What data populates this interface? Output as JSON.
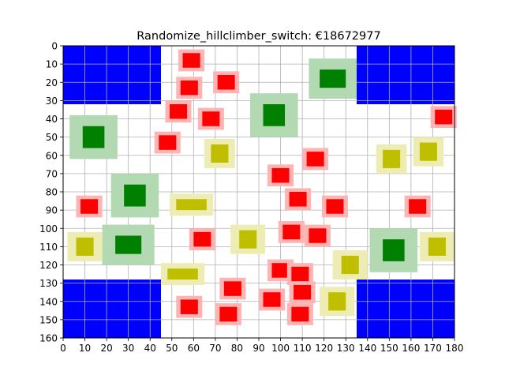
{
  "chart_data": {
    "type": "heatmap",
    "title": "Randomize_hillclimber_switch: €18672977",
    "xlabel": "",
    "ylabel": "",
    "xlim": [
      0,
      180
    ],
    "ylim": [
      160,
      0
    ],
    "y_inverted": true,
    "grid": true,
    "x_ticks": [
      0,
      10,
      20,
      30,
      40,
      50,
      60,
      70,
      80,
      90,
      100,
      110,
      120,
      130,
      140,
      150,
      160,
      170,
      180
    ],
    "y_ticks": [
      0,
      10,
      20,
      30,
      40,
      50,
      60,
      70,
      80,
      90,
      100,
      110,
      120,
      130,
      140,
      150,
      160
    ],
    "x_tick_labels": [
      "0",
      "10",
      "20",
      "30",
      "40",
      "50",
      "60",
      "70",
      "80",
      "90",
      "100",
      "110",
      "120",
      "130",
      "140",
      "150",
      "160",
      "170",
      "180"
    ],
    "y_tick_labels": [
      "0",
      "10",
      "20",
      "30",
      "40",
      "50",
      "60",
      "70",
      "80",
      "90",
      "100",
      "110",
      "120",
      "130",
      "140",
      "150",
      "160"
    ],
    "colors": {
      "zone": "#0000ff",
      "red_core": "#ff0000",
      "red_halo": "#ffb3b3",
      "green_core": "#008000",
      "green_halo": "#b3d9b3",
      "yellow_core": "#bfbf00",
      "yellow_halo": "#ececb3"
    },
    "zones": [
      {
        "x0": 0,
        "x1": 45,
        "y0": 0,
        "y1": 32
      },
      {
        "x0": 135,
        "x1": 180,
        "y0": 0,
        "y1": 32
      },
      {
        "x0": 0,
        "x1": 45,
        "y0": 128,
        "y1": 160
      },
      {
        "x0": 135,
        "x1": 180,
        "y0": 128,
        "y1": 160
      }
    ],
    "items": [
      {
        "kind": "green",
        "cx": 124,
        "cy": 18,
        "hw": 11,
        "hh": 11,
        "cw": 6,
        "ch": 5
      },
      {
        "kind": "green",
        "cx": 97,
        "cy": 38,
        "hw": 11,
        "hh": 12,
        "cw": 5,
        "ch": 6
      },
      {
        "kind": "green",
        "cx": 14,
        "cy": 50,
        "hw": 11,
        "hh": 12,
        "cw": 5,
        "ch": 6
      },
      {
        "kind": "green",
        "cx": 33,
        "cy": 82,
        "hw": 11,
        "hh": 12,
        "cw": 5,
        "ch": 6
      },
      {
        "kind": "green",
        "cx": 30,
        "cy": 109,
        "hw": 12,
        "hh": 11,
        "cw": 6,
        "ch": 5
      },
      {
        "kind": "green",
        "cx": 152,
        "cy": 112,
        "hw": 11,
        "hh": 12,
        "cw": 5,
        "ch": 6
      },
      {
        "kind": "red",
        "cx": 59,
        "cy": 8,
        "hw": 6,
        "hh": 6,
        "cw": 4,
        "ch": 4
      },
      {
        "kind": "red",
        "cx": 75,
        "cy": 20,
        "hw": 6,
        "hh": 6,
        "cw": 4,
        "ch": 4
      },
      {
        "kind": "red",
        "cx": 58,
        "cy": 23,
        "hw": 6,
        "hh": 6,
        "cw": 4,
        "ch": 4
      },
      {
        "kind": "red",
        "cx": 53,
        "cy": 36,
        "hw": 6,
        "hh": 6,
        "cw": 4,
        "ch": 4
      },
      {
        "kind": "red",
        "cx": 68,
        "cy": 40,
        "hw": 6,
        "hh": 6,
        "cw": 4,
        "ch": 4
      },
      {
        "kind": "red",
        "cx": 175,
        "cy": 39,
        "hw": 6,
        "hh": 6,
        "cw": 4,
        "ch": 4
      },
      {
        "kind": "red",
        "cx": 48,
        "cy": 53,
        "hw": 6,
        "hh": 6,
        "cw": 4,
        "ch": 4
      },
      {
        "kind": "red",
        "cx": 116,
        "cy": 62,
        "hw": 6,
        "hh": 6,
        "cw": 4,
        "ch": 4
      },
      {
        "kind": "red",
        "cx": 100,
        "cy": 71,
        "hw": 6,
        "hh": 6,
        "cw": 4,
        "ch": 4
      },
      {
        "kind": "red",
        "cx": 108,
        "cy": 84,
        "hw": 6,
        "hh": 6,
        "cw": 4,
        "ch": 4
      },
      {
        "kind": "red",
        "cx": 12,
        "cy": 88,
        "hw": 6,
        "hh": 6,
        "cw": 4,
        "ch": 4
      },
      {
        "kind": "red",
        "cx": 125,
        "cy": 88,
        "hw": 6,
        "hh": 6,
        "cw": 4,
        "ch": 4
      },
      {
        "kind": "red",
        "cx": 163,
        "cy": 88,
        "hw": 6,
        "hh": 6,
        "cw": 4,
        "ch": 4
      },
      {
        "kind": "red",
        "cx": 105,
        "cy": 102,
        "hw": 6,
        "hh": 6,
        "cw": 4,
        "ch": 4
      },
      {
        "kind": "red",
        "cx": 117,
        "cy": 104,
        "hw": 6,
        "hh": 6,
        "cw": 4,
        "ch": 4
      },
      {
        "kind": "red",
        "cx": 64,
        "cy": 106,
        "hw": 6,
        "hh": 6,
        "cw": 4,
        "ch": 4
      },
      {
        "kind": "red",
        "cx": 100,
        "cy": 123,
        "hw": 6,
        "hh": 6,
        "cw": 4,
        "ch": 4
      },
      {
        "kind": "red",
        "cx": 109,
        "cy": 125,
        "hw": 6,
        "hh": 6,
        "cw": 4,
        "ch": 4
      },
      {
        "kind": "red",
        "cx": 78,
        "cy": 133,
        "hw": 6,
        "hh": 6,
        "cw": 4,
        "ch": 4
      },
      {
        "kind": "red",
        "cx": 110,
        "cy": 135,
        "hw": 6,
        "hh": 6,
        "cw": 4,
        "ch": 4
      },
      {
        "kind": "red",
        "cx": 96,
        "cy": 139,
        "hw": 6,
        "hh": 6,
        "cw": 4,
        "ch": 4
      },
      {
        "kind": "red",
        "cx": 58,
        "cy": 143,
        "hw": 6,
        "hh": 6,
        "cw": 4,
        "ch": 4
      },
      {
        "kind": "red",
        "cx": 76,
        "cy": 147,
        "hw": 6,
        "hh": 6,
        "cw": 4,
        "ch": 4
      },
      {
        "kind": "red",
        "cx": 109,
        "cy": 147,
        "hw": 6,
        "hh": 6,
        "cw": 4,
        "ch": 4
      },
      {
        "kind": "yellow",
        "cx": 72,
        "cy": 59,
        "hw": 7,
        "hh": 8,
        "cw": 4,
        "ch": 5
      },
      {
        "kind": "yellow",
        "cx": 151,
        "cy": 62,
        "hw": 7,
        "hh": 8,
        "cw": 4,
        "ch": 5
      },
      {
        "kind": "yellow",
        "cx": 168,
        "cy": 58,
        "hw": 7,
        "hh": 8,
        "cw": 4,
        "ch": 5
      },
      {
        "kind": "yellow",
        "cx": 59,
        "cy": 87,
        "hw": 10,
        "hh": 6,
        "cw": 7,
        "ch": 3
      },
      {
        "kind": "yellow",
        "cx": 85,
        "cy": 106,
        "hw": 8,
        "hh": 8,
        "cw": 4,
        "ch": 5
      },
      {
        "kind": "yellow",
        "cx": 10,
        "cy": 110,
        "hw": 8,
        "hh": 8,
        "cw": 4,
        "ch": 5
      },
      {
        "kind": "yellow",
        "cx": 172,
        "cy": 110,
        "hw": 8,
        "hh": 8,
        "cw": 4,
        "ch": 5
      },
      {
        "kind": "yellow",
        "cx": 132,
        "cy": 120,
        "hw": 8,
        "hh": 8,
        "cw": 4,
        "ch": 5
      },
      {
        "kind": "yellow",
        "cx": 55,
        "cy": 125,
        "hw": 10,
        "hh": 6,
        "cw": 7,
        "ch": 3
      },
      {
        "kind": "yellow",
        "cx": 126,
        "cy": 140,
        "hw": 8,
        "hh": 8,
        "cw": 4,
        "ch": 5
      }
    ]
  }
}
